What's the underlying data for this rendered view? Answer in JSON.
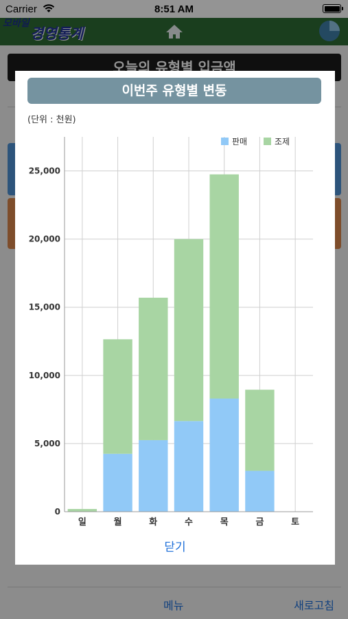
{
  "status_bar": {
    "carrier": "Carrier",
    "time": "8:51 AM"
  },
  "app": {
    "logo_line1": "모바일",
    "logo_line2": "경영통계",
    "icons": [
      "home-icon",
      "pie-chart-icon"
    ]
  },
  "background": {
    "banner": "오늘의 유형별 입금액",
    "bottom_menu": "메뉴",
    "bottom_refresh": "새로고침"
  },
  "modal": {
    "title": "이번주 유형별 변동",
    "unit": "(단위 : 천원)",
    "close_label": "닫기"
  },
  "colors": {
    "header_green": "#2e6b35",
    "title_bar": "#7593a0",
    "sale": "#91c9f7",
    "prep": "#a8d5a3",
    "link_blue": "#1e6fd9"
  },
  "chart_data": {
    "type": "bar",
    "stacked": true,
    "categories": [
      "일",
      "월",
      "화",
      "수",
      "목",
      "금",
      "토"
    ],
    "series": [
      {
        "name": "판매",
        "color": "#91c9f7",
        "values": [
          0,
          4250,
          5250,
          6650,
          8300,
          3000,
          0
        ]
      },
      {
        "name": "조제",
        "color": "#a8d5a3",
        "values": [
          200,
          8400,
          10450,
          13350,
          16450,
          5950,
          0
        ]
      }
    ],
    "ylim": [
      0,
      27500
    ],
    "yticks": [
      0,
      5000,
      10000,
      15000,
      20000,
      25000
    ],
    "ytick_labels": [
      "0",
      "5,000",
      "10,000",
      "15,000",
      "20,000",
      "25,000"
    ],
    "legend_position": "top-right",
    "grid": true
  }
}
